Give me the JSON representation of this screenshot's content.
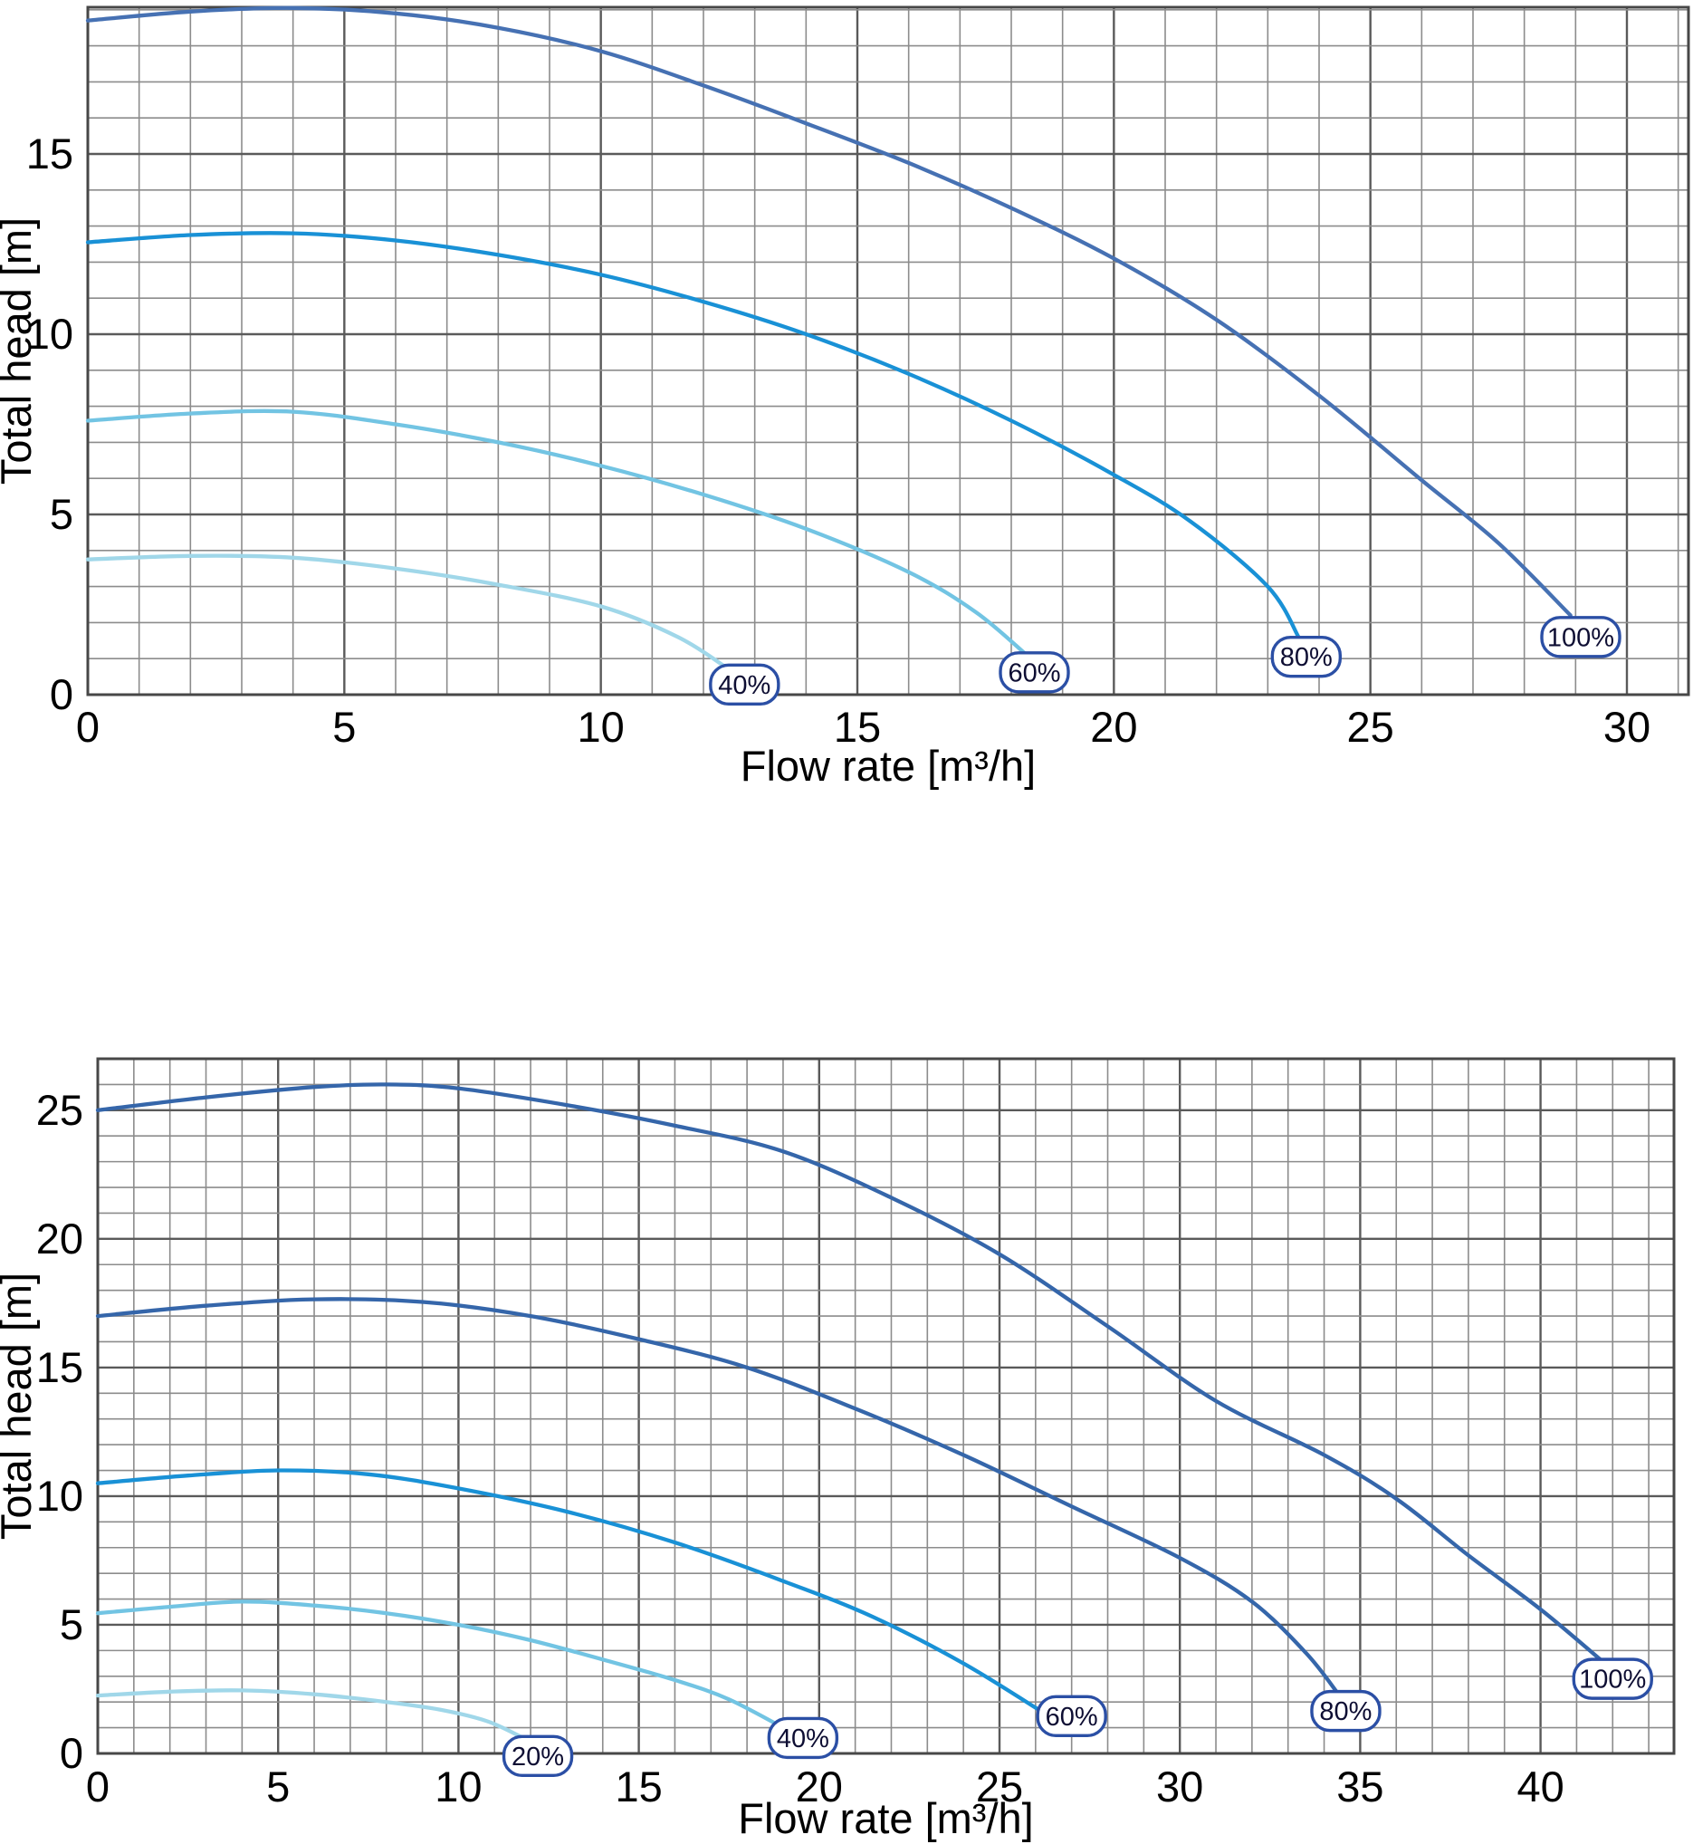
{
  "page": {
    "background": "#ffffff"
  },
  "pill_style": {
    "border_color": "#2b4fa5",
    "fill": "#ffffff",
    "text_color": "#0e0e33"
  },
  "grid_style": {
    "minor_color": "#8c8c8c",
    "major_color": "#5a5a5a",
    "border_color": "#474747"
  },
  "chart_data": [
    {
      "id": "pump-curves-small",
      "type": "line",
      "title": "",
      "xlabel": "Flow rate [m³/h]",
      "ylabel": "Total head [m]",
      "xticks": [
        0,
        5,
        10,
        15,
        20,
        25,
        30
      ],
      "yticks": [
        0,
        5,
        10,
        15
      ],
      "xlim": [
        0,
        31.2
      ],
      "ylim": [
        0,
        19.07
      ],
      "grid": {
        "minor_step": 1,
        "major_step": 5,
        "on": true
      },
      "legend_position": "end-of-curve-pills",
      "series": [
        {
          "name": "100%",
          "color": "#4671b3",
          "points": [
            [
              0,
              18.7
            ],
            [
              2,
              18.95
            ],
            [
              4,
              19.05
            ],
            [
              6,
              18.9
            ],
            [
              8,
              18.5
            ],
            [
              10,
              17.85
            ],
            [
              12,
              16.9
            ],
            [
              14,
              15.85
            ],
            [
              16,
              14.75
            ],
            [
              18,
              13.5
            ],
            [
              20,
              12.1
            ],
            [
              22,
              10.4
            ],
            [
              24,
              8.3
            ],
            [
              26,
              5.95
            ],
            [
              27.5,
              4.2
            ],
            [
              28.9,
              2.2
            ]
          ],
          "label": {
            "text": "100%",
            "x": 29.1,
            "y": 1.6
          }
        },
        {
          "name": "80%",
          "color": "#1991d6",
          "points": [
            [
              0,
              12.55
            ],
            [
              2,
              12.75
            ],
            [
              4,
              12.8
            ],
            [
              6,
              12.6
            ],
            [
              8,
              12.2
            ],
            [
              10,
              11.65
            ],
            [
              12,
              10.9
            ],
            [
              14,
              10.0
            ],
            [
              16,
              8.9
            ],
            [
              18,
              7.6
            ],
            [
              20,
              6.1
            ],
            [
              21.5,
              4.8
            ],
            [
              23,
              3.0
            ],
            [
              23.6,
              1.6
            ]
          ],
          "label": {
            "text": "80%",
            "x": 23.75,
            "y": 1.05
          }
        },
        {
          "name": "60%",
          "color": "#72c4e3",
          "points": [
            [
              0,
              7.6
            ],
            [
              2,
              7.8
            ],
            [
              4,
              7.85
            ],
            [
              6,
              7.5
            ],
            [
              8,
              7.0
            ],
            [
              10,
              6.35
            ],
            [
              12,
              5.55
            ],
            [
              14,
              4.6
            ],
            [
              16,
              3.4
            ],
            [
              17.3,
              2.3
            ],
            [
              18.3,
              1.1
            ]
          ],
          "label": {
            "text": "60%",
            "x": 18.45,
            "y": 0.62
          }
        },
        {
          "name": "40%",
          "color": "#a0d7e9",
          "points": [
            [
              0,
              3.75
            ],
            [
              2,
              3.85
            ],
            [
              4,
              3.8
            ],
            [
              6,
              3.5
            ],
            [
              8,
              3.05
            ],
            [
              10,
              2.45
            ],
            [
              11.5,
              1.6
            ],
            [
              12.5,
              0.7
            ]
          ],
          "label": {
            "text": "40%",
            "x": 12.8,
            "y": 0.28
          }
        }
      ]
    },
    {
      "id": "pump-curves-large",
      "type": "line",
      "title": "",
      "xlabel": "Flow rate [m³/h]",
      "ylabel": "Total head [m]",
      "xticks": [
        0,
        5,
        10,
        15,
        20,
        25,
        30,
        35,
        40
      ],
      "yticks": [
        0,
        5,
        10,
        15,
        20,
        25
      ],
      "xlim": [
        0,
        43.7
      ],
      "ylim": [
        0,
        27.0
      ],
      "grid": {
        "minor_step": 1,
        "major_step": 5,
        "on": true
      },
      "legend_position": "end-of-curve-pills",
      "series": [
        {
          "name": "100%",
          "color": "#3566aa",
          "points": [
            [
              0,
              25.0
            ],
            [
              3,
              25.5
            ],
            [
              6,
              25.9
            ],
            [
              8,
              26.0
            ],
            [
              10,
              25.85
            ],
            [
              13,
              25.2
            ],
            [
              16,
              24.4
            ],
            [
              19,
              23.4
            ],
            [
              22,
              21.6
            ],
            [
              25,
              19.4
            ],
            [
              28,
              16.6
            ],
            [
              31,
              13.7
            ],
            [
              34,
              11.6
            ],
            [
              36,
              9.9
            ],
            [
              38,
              7.7
            ],
            [
              40,
              5.6
            ],
            [
              41.7,
              3.6
            ]
          ],
          "label": {
            "text": "100%",
            "x": 42.0,
            "y": 2.9
          }
        },
        {
          "name": "80%",
          "color": "#3566aa",
          "points": [
            [
              0,
              17.0
            ],
            [
              3,
              17.4
            ],
            [
              6,
              17.65
            ],
            [
              9,
              17.55
            ],
            [
              12,
              17.0
            ],
            [
              15,
              16.1
            ],
            [
              18,
              15.0
            ],
            [
              21,
              13.4
            ],
            [
              24,
              11.6
            ],
            [
              27,
              9.6
            ],
            [
              30,
              7.6
            ],
            [
              32,
              5.9
            ],
            [
              33.5,
              3.9
            ],
            [
              34.4,
              2.3
            ]
          ],
          "label": {
            "text": "80%",
            "x": 34.6,
            "y": 1.65
          }
        },
        {
          "name": "60%",
          "color": "#1991d6",
          "points": [
            [
              0,
              10.5
            ],
            [
              2.5,
              10.8
            ],
            [
              5,
              11.0
            ],
            [
              7.5,
              10.85
            ],
            [
              10,
              10.3
            ],
            [
              13,
              9.4
            ],
            [
              16,
              8.2
            ],
            [
              19,
              6.7
            ],
            [
              21.5,
              5.3
            ],
            [
              24,
              3.5
            ],
            [
              26.2,
              1.6
            ]
          ],
          "label": {
            "text": "60%",
            "x": 27.0,
            "y": 1.45
          }
        },
        {
          "name": "40%",
          "color": "#72c4e3",
          "points": [
            [
              0,
              5.45
            ],
            [
              2,
              5.7
            ],
            [
              4,
              5.9
            ],
            [
              6,
              5.75
            ],
            [
              8,
              5.45
            ],
            [
              10,
              5.0
            ],
            [
              12,
              4.4
            ],
            [
              14,
              3.65
            ],
            [
              16,
              2.85
            ],
            [
              17.5,
              2.1
            ],
            [
              19.2,
              0.85
            ]
          ],
          "label": {
            "text": "40%",
            "x": 19.55,
            "y": 0.6
          }
        },
        {
          "name": "20%",
          "color": "#a0d7e9",
          "points": [
            [
              0,
              2.25
            ],
            [
              2,
              2.4
            ],
            [
              4,
              2.45
            ],
            [
              6,
              2.3
            ],
            [
              8,
              2.0
            ],
            [
              9.5,
              1.7
            ],
            [
              10.8,
              1.25
            ],
            [
              11.8,
              0.6
            ]
          ],
          "label": {
            "text": "20%",
            "x": 12.2,
            "y": -0.1
          }
        }
      ]
    }
  ]
}
